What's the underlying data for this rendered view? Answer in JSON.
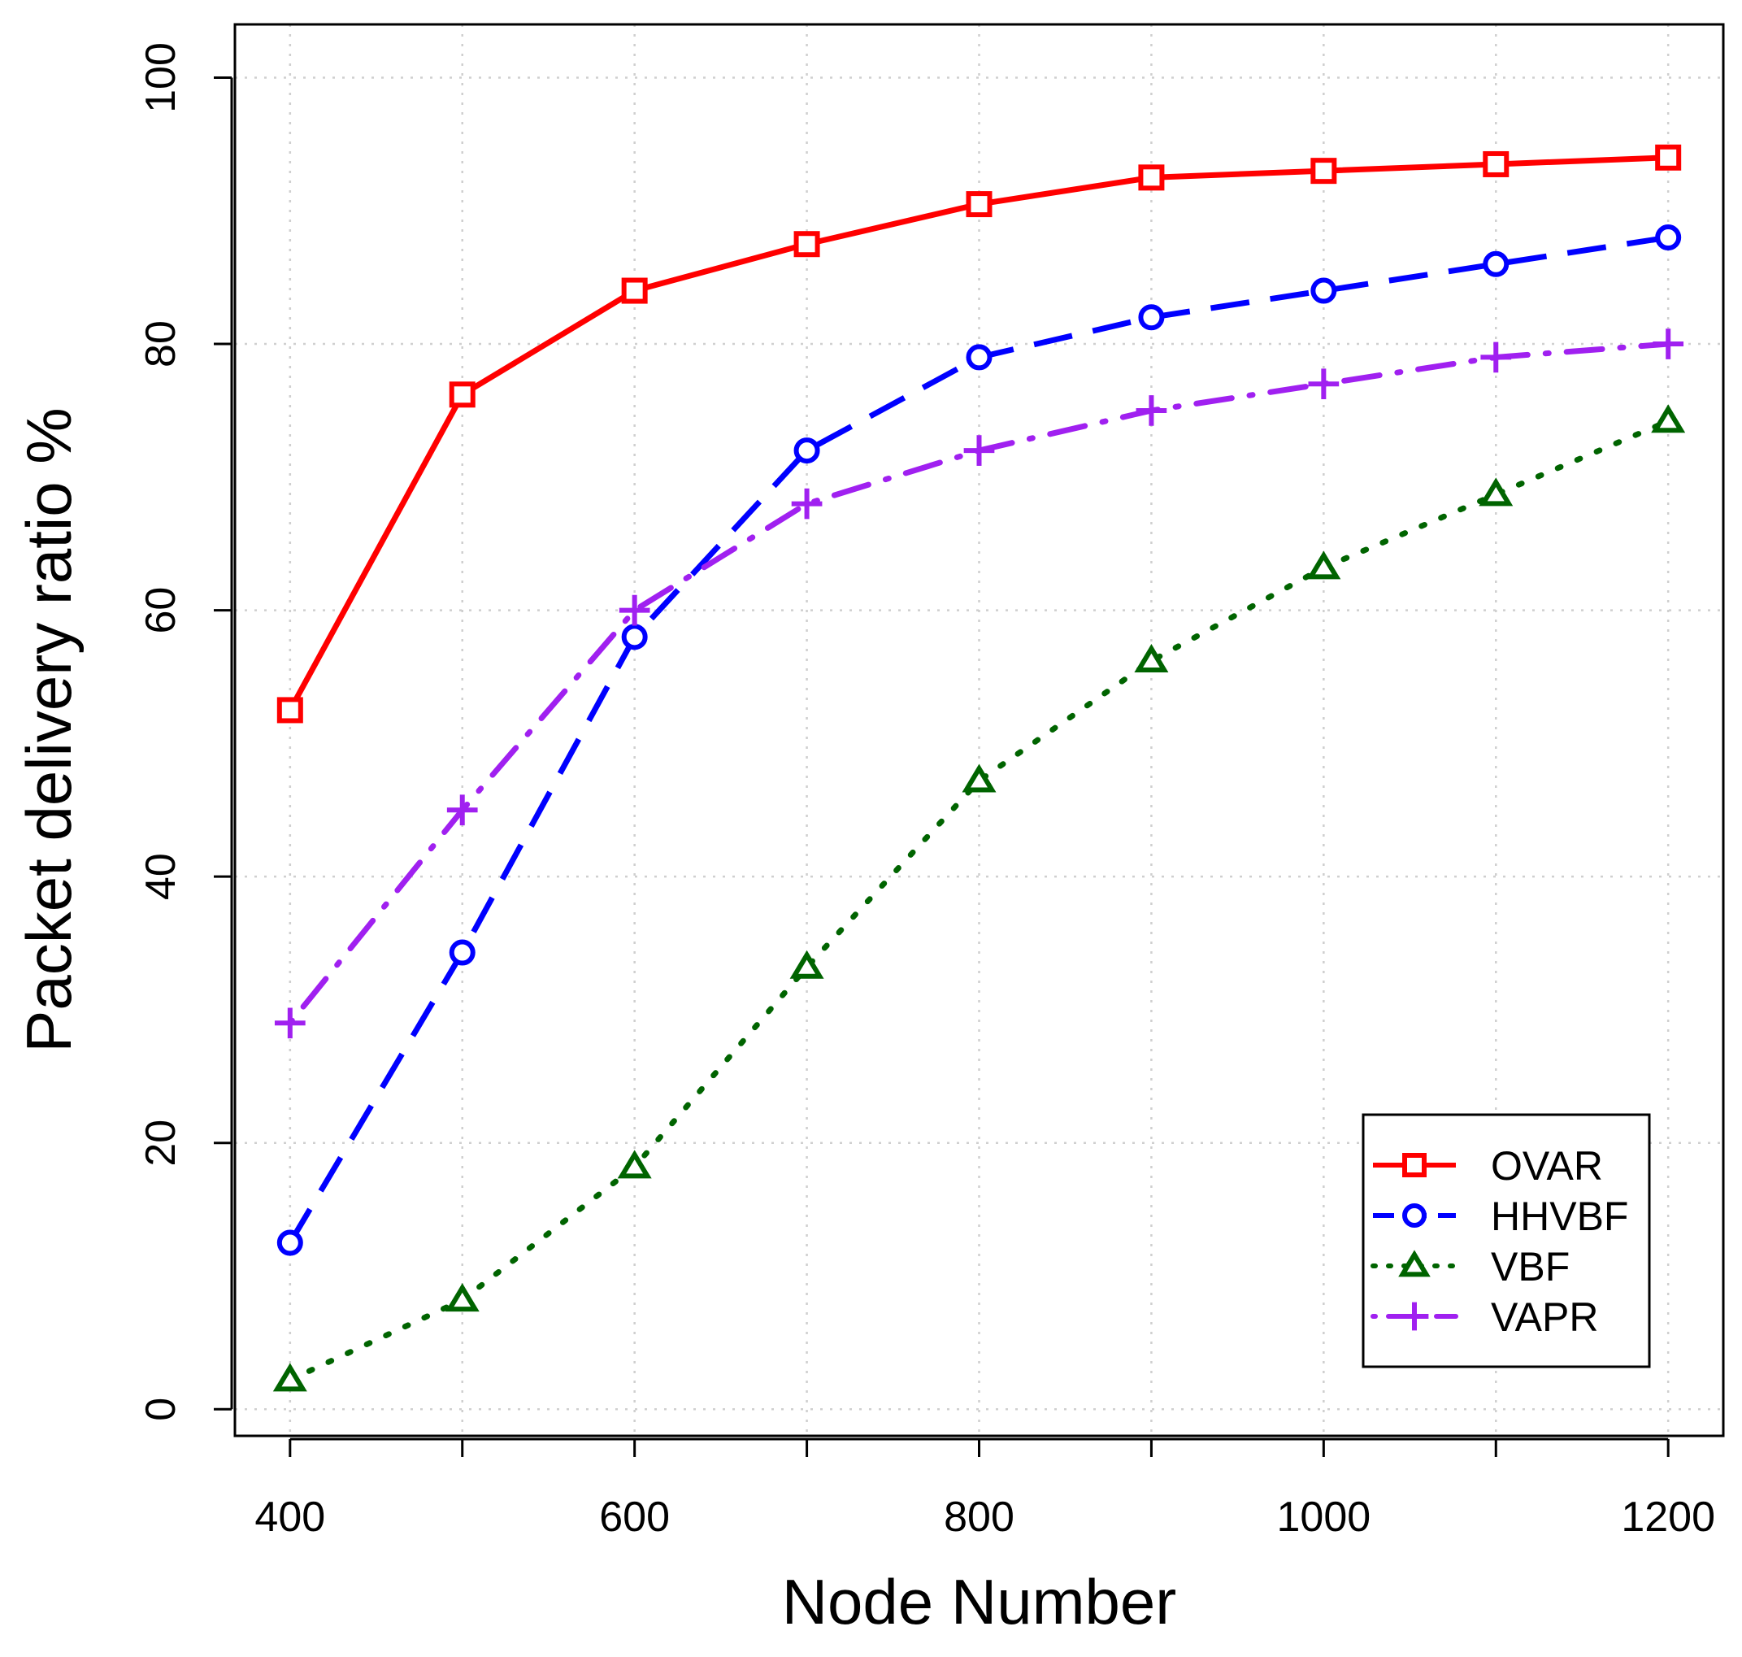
{
  "chart_data": {
    "type": "line",
    "title": "",
    "xlabel": "Node Number",
    "ylabel": "Packet delivery ratio %",
    "x": [
      400,
      500,
      600,
      700,
      800,
      900,
      1000,
      1100,
      1200
    ],
    "xlim": [
      368,
      1232
    ],
    "ylim": [
      -2,
      104
    ],
    "xticks": [
      400,
      600,
      800,
      1000,
      1200
    ],
    "xtick_labels": [
      "400",
      "600",
      "800",
      "1000",
      "1200"
    ],
    "yticks": [
      0,
      20,
      40,
      60,
      80,
      100
    ],
    "ytick_labels": [
      "0",
      "20",
      "40",
      "60",
      "80",
      "100"
    ],
    "grid": true,
    "legend_position": "bottom-right",
    "series": [
      {
        "name": "OVAR",
        "color": "#ff0000",
        "marker": "square",
        "line_style": "solid",
        "values": [
          52.5,
          76.2,
          84,
          87.5,
          90.5,
          92.5,
          93,
          93.5,
          94
        ]
      },
      {
        "name": "HHVBF",
        "color": "#0000ff",
        "marker": "circle",
        "line_style": "dashed",
        "values": [
          12.5,
          34.3,
          58,
          72,
          79,
          82,
          84,
          86,
          88
        ]
      },
      {
        "name": "VBF",
        "color": "#006400",
        "marker": "triangle",
        "line_style": "dotted",
        "values": [
          2.2,
          8.2,
          18.2,
          33.2,
          47.2,
          56.2,
          63.2,
          68.7,
          74.2
        ]
      },
      {
        "name": "VAPR",
        "color": "#a020f0",
        "marker": "plus",
        "line_style": "dashdot",
        "values": [
          29,
          45,
          60,
          68,
          72,
          75,
          77,
          79,
          80
        ]
      }
    ]
  }
}
